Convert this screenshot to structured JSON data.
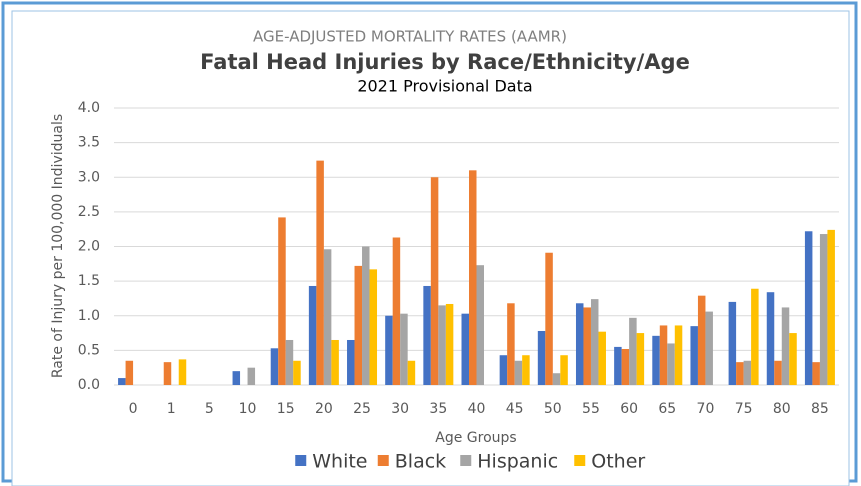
{
  "chart_data": {
    "type": "bar",
    "supertitle": "AGE-ADJUSTED MORTALITY RATES (AAMR)",
    "title": "Fatal Head Injuries by Race/Ethnicity/Age",
    "subtitle": "2021 Provisional Data",
    "xlabel": "Age Groups",
    "ylabel": "Rate of Injury per 100,000 Individuals",
    "categories": [
      "0",
      "1",
      "5",
      "10",
      "15",
      "20",
      "25",
      "30",
      "35",
      "40",
      "45",
      "50",
      "55",
      "60",
      "65",
      "70",
      "75",
      "80",
      "85"
    ],
    "series": [
      {
        "name": "White",
        "color": "#4472c4",
        "values": [
          0.1,
          0,
          0,
          0.2,
          0.53,
          1.43,
          0.65,
          1.0,
          1.43,
          1.03,
          0.43,
          0.78,
          1.18,
          0.55,
          0.71,
          0.85,
          1.2,
          1.34,
          2.22
        ]
      },
      {
        "name": "Black",
        "color": "#ed7d31",
        "values": [
          0.35,
          0.33,
          0,
          0,
          2.42,
          3.24,
          1.72,
          2.13,
          3.0,
          3.1,
          1.18,
          1.91,
          1.12,
          0.52,
          0.86,
          1.29,
          0.33,
          0.35,
          0.33
        ]
      },
      {
        "name": "Hispanic",
        "color": "#a5a5a5",
        "values": [
          0,
          0,
          0,
          0.25,
          0.65,
          1.96,
          2.0,
          1.03,
          1.15,
          1.73,
          0.35,
          0.17,
          1.24,
          0.97,
          0.6,
          1.06,
          0.35,
          1.12,
          2.18
        ]
      },
      {
        "name": "Other",
        "color": "#ffc000",
        "values": [
          0,
          0.37,
          0,
          0,
          0.35,
          0.65,
          1.67,
          0.35,
          1.17,
          0,
          0.43,
          0.43,
          0.77,
          0.75,
          0.86,
          0,
          1.39,
          0.75,
          2.24
        ]
      }
    ],
    "ylim": [
      0,
      4
    ],
    "yticks": [
      {
        "value": 0,
        "label": "0.0"
      },
      {
        "value": 0.5,
        "label": "0.5"
      },
      {
        "value": 1,
        "label": "1.0"
      },
      {
        "value": 1.5,
        "label": "1.5"
      },
      {
        "value": 2,
        "label": "2.0"
      },
      {
        "value": 2.5,
        "label": "2.5"
      },
      {
        "value": 3,
        "label": "3.0"
      },
      {
        "value": 3.5,
        "label": "3.5"
      },
      {
        "value": 4,
        "label": "4.0"
      }
    ],
    "grid": true,
    "legend": "bottom"
  }
}
